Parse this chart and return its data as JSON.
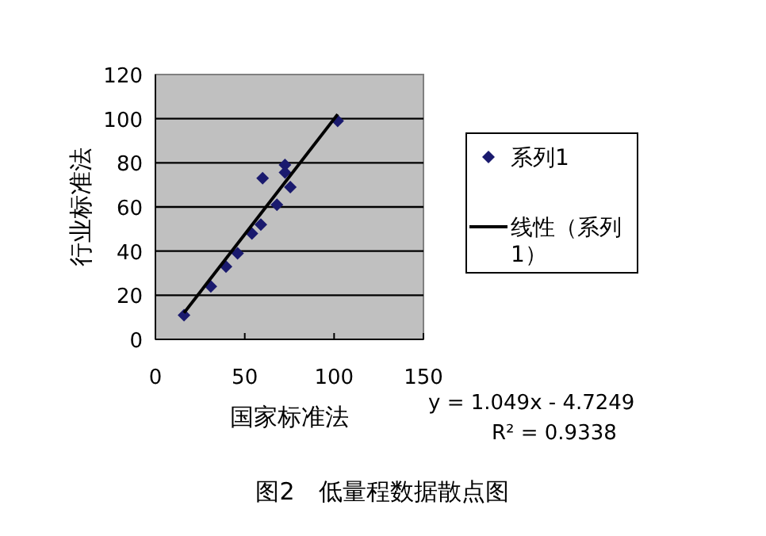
{
  "chart_data": {
    "type": "scatter",
    "title": "图2　低量程数据散点图",
    "xlabel": "国家标准法",
    "ylabel": "行业标准法",
    "xlim": [
      0,
      150
    ],
    "ylim": [
      0,
      120
    ],
    "xticks": [
      0,
      50,
      100,
      150
    ],
    "yticks": [
      0,
      20,
      40,
      60,
      80,
      100,
      120
    ],
    "grid": "y",
    "legend": "right",
    "series": [
      {
        "name": "系列1",
        "type": "scatter",
        "marker": "diamond",
        "color": "#1a1a6e",
        "x": [
          16,
          31,
          39.5,
          46,
          54,
          59,
          60,
          68,
          72.5,
          72.5,
          75.5,
          102
        ],
        "values": [
          11,
          24,
          33,
          39,
          48,
          52,
          73,
          61,
          79,
          75.6,
          69,
          99
        ]
      },
      {
        "name": "线性（系列1）",
        "type": "line",
        "color": "#000000",
        "x": [
          16,
          102
        ],
        "values": [
          12,
          102
        ]
      }
    ],
    "annotations": [
      "y = 1.049x - 4.7249",
      "R² = 0.9338"
    ]
  }
}
